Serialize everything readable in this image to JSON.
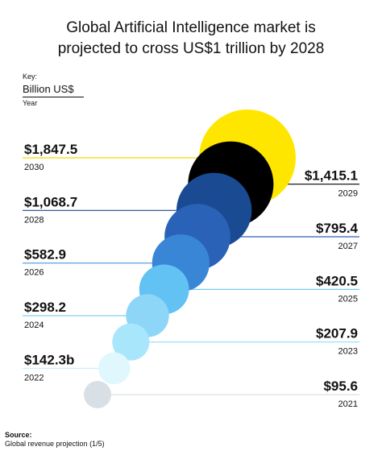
{
  "header": {
    "title_line1": "Global Artificial Intelligence market is",
    "title_line2": "projected to cross US$1 trillion by 2028"
  },
  "key": {
    "label": "Key:",
    "unit": "Billion US$",
    "year": "Year"
  },
  "source": {
    "title": "Source:",
    "text": "Global revenue projection (1/5)"
  },
  "chart_data": {
    "type": "bubble",
    "title": "Global Artificial Intelligence market is projected to cross US$1 trillion by 2028",
    "unit": "Billion US$",
    "x": [
      "2021",
      "2022",
      "2023",
      "2024",
      "2025",
      "2026",
      "2027",
      "2028",
      "2029",
      "2030"
    ],
    "series": [
      {
        "values": [
          95.6,
          142.3,
          207.9,
          298.2,
          420.5,
          582.9,
          795.4,
          1068.7,
          1415.1,
          1847.5
        ],
        "labels": [
          "$95.6",
          "$142.3b",
          "$207.9",
          "$298.2",
          "$420.5",
          "$582.9",
          "$795.4",
          "$1,068.7",
          "$1,415.1",
          "$1,847.5"
        ]
      }
    ],
    "colors": [
      "#d8e0e6",
      "#e0f7fd",
      "#a8e6fb",
      "#8ed6f8",
      "#62c2f4",
      "#3a86d6",
      "#2a62b8",
      "#1a4a92",
      "#000000",
      "#ffe600"
    ],
    "label_sides": [
      "right",
      "left",
      "right",
      "left",
      "right",
      "left",
      "right",
      "left",
      "right",
      "left"
    ]
  }
}
